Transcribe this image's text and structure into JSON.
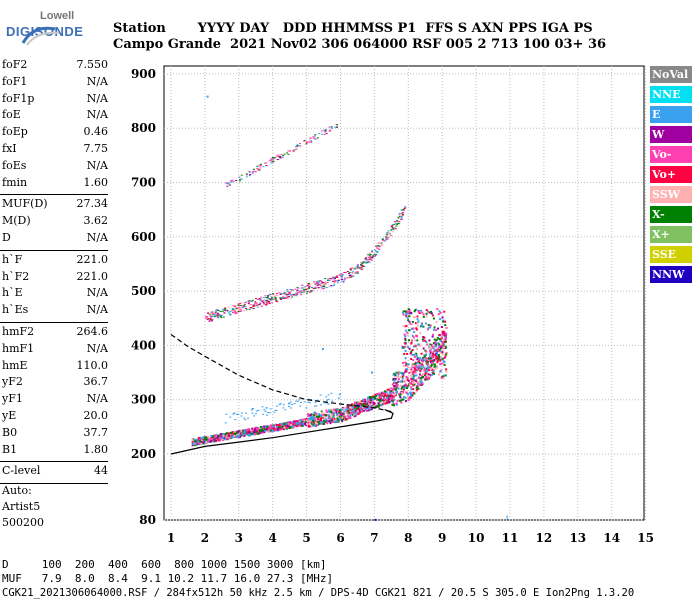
{
  "logo": {
    "top": "Lowell",
    "main": "DIGISONDE"
  },
  "header": {
    "line1": "Station       YYYY DAY   DDD HHMMSS P1  FFS S AXN PPS IGA PS",
    "line2": "Campo Grande  2021 Nov02 306 064000 RSF 005 2 713 100 03+ 36"
  },
  "scaled": [
    {
      "name": "foF2",
      "value": "7.550",
      "sep_after": false
    },
    {
      "name": "foF1",
      "value": "N/A",
      "sep_after": false
    },
    {
      "name": "foF1p",
      "value": "N/A",
      "sep_after": false
    },
    {
      "name": "foE",
      "value": "N/A",
      "sep_after": false
    },
    {
      "name": "foEp",
      "value": "0.46",
      "sep_after": false
    },
    {
      "name": "fxI",
      "value": "7.75",
      "sep_after": false
    },
    {
      "name": "foEs",
      "value": "N/A",
      "sep_after": false
    },
    {
      "name": "fmin",
      "value": "1.60",
      "sep_after": true
    },
    {
      "name": "MUF(D)",
      "value": "27.34",
      "sep_after": false
    },
    {
      "name": "M(D)",
      "value": "3.62",
      "sep_after": false
    },
    {
      "name": "D",
      "value": "N/A",
      "sep_after": true
    },
    {
      "name": "h`F",
      "value": "221.0",
      "sep_after": false
    },
    {
      "name": "h`F2",
      "value": "221.0",
      "sep_after": false
    },
    {
      "name": "h`E",
      "value": "N/A",
      "sep_after": false
    },
    {
      "name": "h`Es",
      "value": "N/A",
      "sep_after": true
    },
    {
      "name": "hmF2",
      "value": "264.6",
      "sep_after": false
    },
    {
      "name": "hmF1",
      "value": "N/A",
      "sep_after": false
    },
    {
      "name": "hmE",
      "value": "110.0",
      "sep_after": false
    },
    {
      "name": "yF2",
      "value": "36.7",
      "sep_after": false
    },
    {
      "name": "yF1",
      "value": "N/A",
      "sep_after": false
    },
    {
      "name": "yE",
      "value": "20.0",
      "sep_after": false
    },
    {
      "name": "B0",
      "value": "37.7",
      "sep_after": false
    },
    {
      "name": "B1",
      "value": "1.80",
      "sep_after": true
    },
    {
      "name": "C-level",
      "value": "44",
      "sep_after": true
    }
  ],
  "auto": {
    "line1": "Auto:",
    "line2": "Artist5",
    "line3": "500200"
  },
  "legend": [
    {
      "label": "NoVal",
      "color": "#888888"
    },
    {
      "label": "NNE",
      "color": "#00e0f0"
    },
    {
      "label": "E",
      "color": "#3aa0f0"
    },
    {
      "label": "W",
      "color": "#a000a0"
    },
    {
      "label": "Vo-",
      "color": "#ff40b0"
    },
    {
      "label": "Vo+",
      "color": "#ff0040"
    },
    {
      "label": "SSW",
      "color": "#ffb0b0"
    },
    {
      "label": "X-",
      "color": "#008000"
    },
    {
      "label": "X+",
      "color": "#80c060"
    },
    {
      "label": "SSE",
      "color": "#d0d000"
    },
    {
      "label": "NNW",
      "color": "#2000c0"
    }
  ],
  "footer": {
    "line1": "D     100  200  400  600  800 1000 1500 3000 [km]",
    "line2": "MUF   7.9  8.0  8.4  9.1 10.2 11.7 16.0 27.3 [MHz]",
    "line3": "CGK21_2021306064000.RSF / 284fx512h 50 kHz 2.5 km / DPS-4D CGK21 821 / 20.5 S 305.0 E Ion2Png 1.3.20"
  },
  "chart_data": {
    "type": "scatter",
    "x_ticks": [
      "1",
      "2",
      "3",
      "4",
      "5",
      "6",
      "7",
      "8",
      "9",
      "10",
      "11",
      "12",
      "13",
      "14",
      "15"
    ],
    "y_ticks": [
      "80",
      "200",
      "300",
      "400",
      "500",
      "600",
      "700",
      "800",
      "900"
    ],
    "xlim": [
      1,
      15
    ],
    "ylim": [
      80,
      900
    ],
    "traces": [
      {
        "name": "F-trace main",
        "x_range": [
          1.6,
          9.1
        ],
        "y_range": [
          221,
          470
        ]
      },
      {
        "name": "second hop",
        "x_range": [
          2.0,
          7.9
        ],
        "y_range": [
          450,
          675
        ]
      },
      {
        "name": "third hop",
        "x_range": [
          2.6,
          5.9
        ],
        "y_range": [
          695,
          810
        ]
      }
    ],
    "profile_solid": [
      [
        1.0,
        200
      ],
      [
        2,
        214
      ],
      [
        3,
        222
      ],
      [
        4,
        230
      ],
      [
        5,
        240
      ],
      [
        6,
        250
      ],
      [
        7,
        260
      ],
      [
        7.5,
        266
      ],
      [
        7.55,
        275
      ],
      [
        7.3,
        282
      ]
    ],
    "profile_dashed": [
      [
        1.0,
        420
      ],
      [
        1.5,
        398
      ],
      [
        2,
        380
      ],
      [
        3,
        345
      ],
      [
        4,
        318
      ],
      [
        5,
        300
      ],
      [
        6,
        292
      ],
      [
        7,
        285
      ],
      [
        7.5,
        278
      ]
    ]
  }
}
